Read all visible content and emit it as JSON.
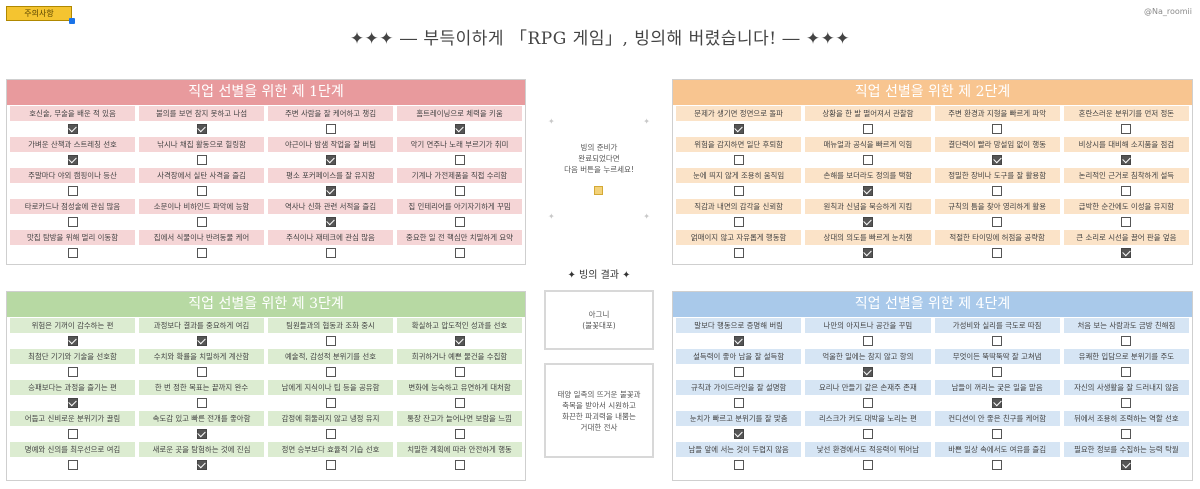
{
  "notice_button": "주의사항",
  "watermark": "@Na_roomii",
  "main_title": "✦✦✦ ― 부득이하게 「RPG 게임」, 빙의해 버렸습니다! ― ✦✦✦",
  "center": {
    "text": "빙의 준비가\n완료되었다면\n다음 버튼을 누르세요!",
    "result_title": "✦ 빙의 결과 ✦",
    "result_name": "아그니\n(불꽃대포)",
    "result_desc": "태양 일족의 뜨거운 불꽃과\n축복을 받아서 시원하고\n화끈한 파괴력을 내뿜는\n거대한 전사"
  },
  "panels": [
    {
      "title": "직업 선별을 위한 제 1단계",
      "cells": [
        {
          "label": "호신술, 무술을 배운 적 있음",
          "checked": true
        },
        {
          "label": "불의를 보면 참지 못하고 나섬",
          "checked": true
        },
        {
          "label": "주변 사람을 잘 케어하고 챙김",
          "checked": false
        },
        {
          "label": "홈트레이닝으로 체력을 키움",
          "checked": true
        },
        {
          "label": "가벼운 산책과 스트레칭 선호",
          "checked": true
        },
        {
          "label": "낚시나 채집 활동으로 힐링함",
          "checked": false
        },
        {
          "label": "야근이나 밤샘 작업을 잘 버팀",
          "checked": true
        },
        {
          "label": "악기 연주나 노래 부르기가 취미",
          "checked": false
        },
        {
          "label": "주말마다 야외 캠핑이나 등산",
          "checked": false
        },
        {
          "label": "사격장에서 실탄 사격을 즐김",
          "checked": false
        },
        {
          "label": "평소 포커페이스를 잘 유지함",
          "checked": true
        },
        {
          "label": "기계나 가전제품을 직접 수리함",
          "checked": false
        },
        {
          "label": "타로카드나 점성술에 관심 많음",
          "checked": false
        },
        {
          "label": "소문이나 비하인드 파악에 능함",
          "checked": false
        },
        {
          "label": "역사나 신화 관련 서적을 즐김",
          "checked": true
        },
        {
          "label": "집 인테리어를 아기자기하게 꾸밈",
          "checked": false
        },
        {
          "label": "맛집 탐방을 위해 멀리 이동함",
          "checked": false
        },
        {
          "label": "집에서 식물이나 반려동물 케어",
          "checked": false
        },
        {
          "label": "주식이나 재테크에 관심 많음",
          "checked": false
        },
        {
          "label": "중요한 일 전 핵심만 치밀하게 요약",
          "checked": false
        }
      ]
    },
    {
      "title": "직업 선별을 위한 제 2단계",
      "cells": [
        {
          "label": "문제가 생기면 정면으로 돌파",
          "checked": true
        },
        {
          "label": "상황을 한 발 떨어져서 관찰함",
          "checked": false
        },
        {
          "label": "주변 환경과 지형을 빠르게 파악",
          "checked": false
        },
        {
          "label": "혼란스러운 분위기를 먼저 정돈",
          "checked": false
        },
        {
          "label": "위험을 감지하면 일단 후퇴함",
          "checked": false
        },
        {
          "label": "매뉴얼과 공식을 빠르게 익힘",
          "checked": false
        },
        {
          "label": "결단력이 빨라 망설임 없이 행동",
          "checked": true
        },
        {
          "label": "비상시를 대비해 소지품을 점검",
          "checked": true
        },
        {
          "label": "눈에 띄지 않게 조용히 움직임",
          "checked": false
        },
        {
          "label": "손해를 보더라도 정의를 택함",
          "checked": true
        },
        {
          "label": "정밀한 장비나 도구를 잘 활용함",
          "checked": false
        },
        {
          "label": "논리적인 근거로 침착하게 설득",
          "checked": false
        },
        {
          "label": "직감과 내면의 감각을 신뢰함",
          "checked": false
        },
        {
          "label": "원칙과 신념을 묵승하게 지킴",
          "checked": true
        },
        {
          "label": "규칙의 틈을 찾아 영리하게 활용",
          "checked": false
        },
        {
          "label": "급박한 순간에도 이성을 유지함",
          "checked": false
        },
        {
          "label": "얽매이지 않고 자유롭게 행동함",
          "checked": false
        },
        {
          "label": "상대의 의도를 빠르게 눈치챔",
          "checked": true
        },
        {
          "label": "적절한 타이밍에 허점을 공략함",
          "checked": false
        },
        {
          "label": "큰 소리로 시선을 끌어 판을 엎음",
          "checked": true
        }
      ]
    },
    {
      "title": "직업 선별을 위한 제 3단계",
      "cells": [
        {
          "label": "위험은 기꺼이 감수하는 편",
          "checked": true
        },
        {
          "label": "과정보다 결과를 중요하게 여김",
          "checked": true
        },
        {
          "label": "팀원들과의 협동과 조화 중시",
          "checked": false
        },
        {
          "label": "확실하고 압도적인 성과를 선호",
          "checked": true
        },
        {
          "label": "최첨단 기기와 기술을 선호함",
          "checked": false
        },
        {
          "label": "수치와 확률을 치밀하게 계산함",
          "checked": false
        },
        {
          "label": "예술적, 감성적 분위기를 선호",
          "checked": false
        },
        {
          "label": "희귀하거나 예쁜 물건을 수집함",
          "checked": false
        },
        {
          "label": "승패보다는 과정을 즐기는 편",
          "checked": true
        },
        {
          "label": "한 번 정한 목표는 끝까지 완수",
          "checked": false
        },
        {
          "label": "남에게 지식이나 팁 등을 공유함",
          "checked": false
        },
        {
          "label": "변화에 능숙하고 유연하게 대처함",
          "checked": false
        },
        {
          "label": "어둡고 신비로운 분위기가 끌림",
          "checked": false
        },
        {
          "label": "속도감 있고 빠른 전개를 좋아함",
          "checked": true
        },
        {
          "label": "감정에 휘둘리지 않고 냉정 유지",
          "checked": false
        },
        {
          "label": "통장 잔고가 늘어나면 보람을 느낌",
          "checked": false
        },
        {
          "label": "명예와 신의를 최우선으로 여김",
          "checked": false
        },
        {
          "label": "새로운 곳을 탐험하는 것에 진심",
          "checked": true
        },
        {
          "label": "정면 승부보다 효율적 기습 선호",
          "checked": false
        },
        {
          "label": "치밀한 계획에 따라 안전하게 행동",
          "checked": false
        }
      ]
    },
    {
      "title": "직업 선별을 위한 제 4단계",
      "cells": [
        {
          "label": "말보다 행동으로 증명해 버림",
          "checked": true
        },
        {
          "label": "나만의 아지트나 공간을 꾸밈",
          "checked": false
        },
        {
          "label": "가성비와 실리를 극도로 따짐",
          "checked": false
        },
        {
          "label": "처음 보는 사람과도 금방 친해짐",
          "checked": false
        },
        {
          "label": "설득력이 좋아 남을 잘 설득함",
          "checked": false
        },
        {
          "label": "억울한 일에는 참지 않고 항의",
          "checked": true
        },
        {
          "label": "무엇이든 뚝딱뚝딱 잘 고쳐냄",
          "checked": false
        },
        {
          "label": "유쾌한 입담으로 분위기를 주도",
          "checked": false
        },
        {
          "label": "규칙과 가이드라인을 잘 설명함",
          "checked": false
        },
        {
          "label": "요리나 만들기 같은 손재주 존재",
          "checked": false
        },
        {
          "label": "남들이 꺼리는 궂은 일을 맡음",
          "checked": true
        },
        {
          "label": "자신의 사생활을 잘 드러내지 않음",
          "checked": false
        },
        {
          "label": "눈치가 빠르고 분위기를 잘 맞춤",
          "checked": true
        },
        {
          "label": "리스크가 커도 대박을 노리는 편",
          "checked": false
        },
        {
          "label": "컨디션이 안 좋은 친구를 케어함",
          "checked": false
        },
        {
          "label": "뒤에서 조용히 조력하는 역할 선호",
          "checked": false
        },
        {
          "label": "남들 앞에 서는 것이 두렵지 않음",
          "checked": false
        },
        {
          "label": "낯선 환경에서도 적응력이 뛰어남",
          "checked": false
        },
        {
          "label": "바쁜 일상 속에서도 여유를 즐김",
          "checked": false
        },
        {
          "label": "필요한 정보를 수집하는 능력 탁월",
          "checked": true
        }
      ]
    }
  ]
}
